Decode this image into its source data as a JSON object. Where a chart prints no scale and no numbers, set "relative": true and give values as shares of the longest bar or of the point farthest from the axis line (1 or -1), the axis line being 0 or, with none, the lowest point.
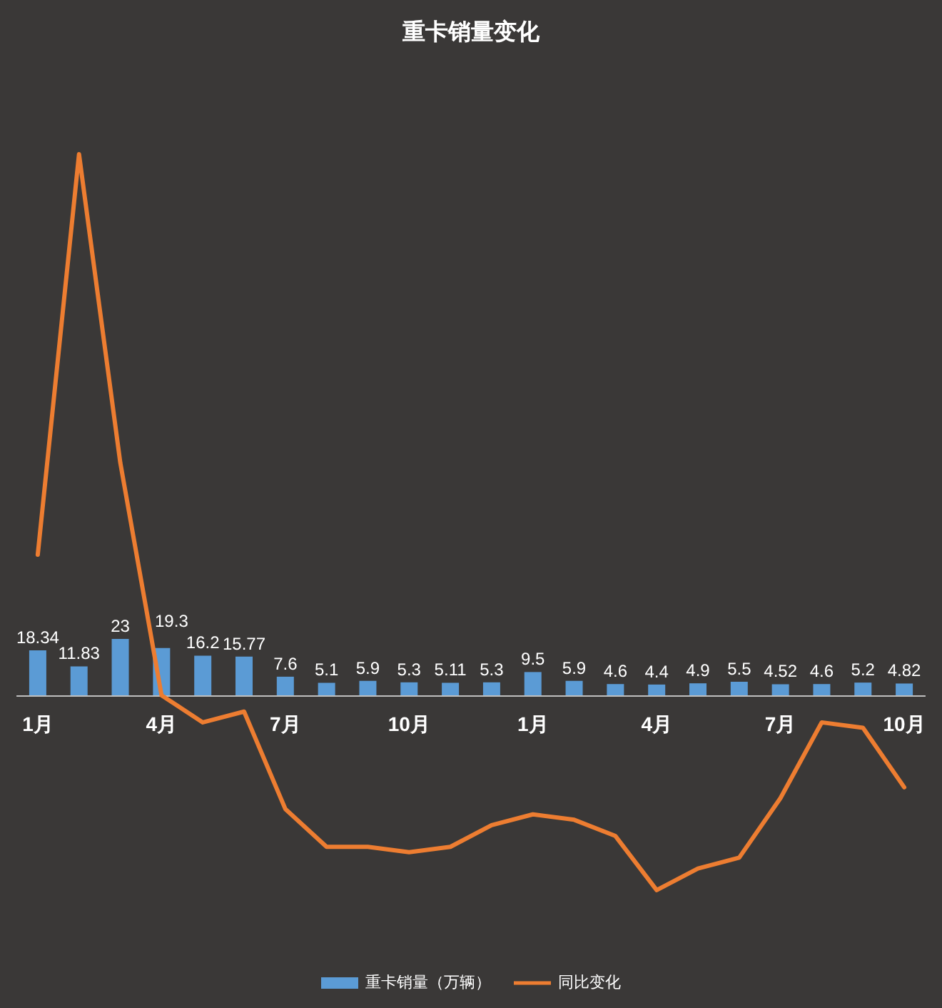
{
  "chart_data": [
    {
      "type": "bar",
      "title": "重卡销量变化",
      "categories": [
        "1月",
        null,
        null,
        "4月",
        null,
        null,
        "7月",
        null,
        null,
        "10月",
        null,
        null,
        "1月",
        null,
        null,
        "4月",
        null,
        null,
        "7月",
        null,
        null,
        "10月"
      ],
      "series": [
        {
          "name": "重卡销量（万辆）",
          "color": "#5b9bd5",
          "values": [
            18.34,
            11.83,
            23,
            19.3,
            16.2,
            15.77,
            7.6,
            5.1,
            5.9,
            5.3,
            5.11,
            5.3,
            9.5,
            5.9,
            4.6,
            4.4,
            4.9,
            5.5,
            4.52,
            4.6,
            5.2,
            4.82
          ],
          "value_labels": [
            "18.34",
            "11.83",
            "23",
            "19.3",
            "16.2",
            "15.77",
            "7.6",
            "5.1",
            "5.9",
            "5.3",
            "5.11",
            "5.3",
            "9.5",
            "5.9",
            "4.6",
            "4.4",
            "4.9",
            "5.5",
            "4.52",
            "4.6",
            "5.2",
            "4.82"
          ]
        }
      ],
      "legend": "bottom",
      "tick_labels": "x"
    },
    {
      "type": "line",
      "relative": true,
      "categories": [
        null,
        null,
        null,
        null,
        null,
        null,
        null,
        null,
        null,
        null,
        null,
        null,
        null,
        null,
        null,
        null,
        null,
        null,
        null,
        null,
        null,
        null
      ],
      "series": [
        {
          "name": "同比变化",
          "color": "#ed7d31",
          "values": [
            0.26,
            1,
            0.43,
            0,
            -0.05,
            -0.03,
            -0.21,
            -0.28,
            -0.28,
            -0.29,
            -0.28,
            -0.24,
            -0.22,
            -0.23,
            -0.26,
            -0.36,
            -0.32,
            -0.3,
            -0.19,
            -0.05,
            -0.06,
            -0.17
          ]
        }
      ],
      "legend": "bottom",
      "marker": "none",
      "line_style": "solid",
      "tick_labels": false
    }
  ]
}
